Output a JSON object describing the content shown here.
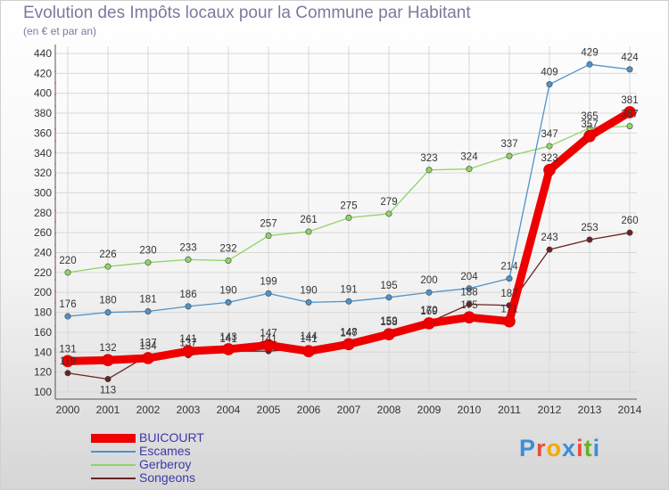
{
  "title": "Evolution des Impôts locaux pour la Commune par Habitant",
  "subtitle": "(en € et par an)",
  "logo": {
    "text": "Proxiti",
    "colors": [
      "#3a8fd6",
      "#e84c3d",
      "#f2a900",
      "#3a8fd6",
      "#e84c3d",
      "#6ab023",
      "#3a8fd6"
    ]
  },
  "chart_data": {
    "type": "line",
    "x": [
      2000,
      2001,
      2002,
      2003,
      2004,
      2005,
      2006,
      2007,
      2008,
      2009,
      2010,
      2011,
      2012,
      2013,
      2014
    ],
    "ylim": [
      100,
      440
    ],
    "yticks": [
      100,
      120,
      140,
      160,
      180,
      200,
      220,
      240,
      260,
      280,
      300,
      320,
      340,
      360,
      380,
      400,
      420,
      440
    ],
    "grid": true,
    "legend": "bottom-left",
    "series": [
      {
        "name": "BUICOURT",
        "color": "#ee0000",
        "values": [
          131,
          132,
          134,
          141,
          143,
          147,
          141,
          148,
          158,
          169,
          175,
          171,
          323,
          357,
          381
        ]
      },
      {
        "name": "Escames",
        "color": "#4f93c9",
        "values": [
          176,
          180,
          181,
          186,
          190,
          199,
          190,
          191,
          195,
          200,
          204,
          214,
          409,
          429,
          424
        ]
      },
      {
        "name": "Gerberoy",
        "color": "#8fd467",
        "values": [
          220,
          226,
          230,
          233,
          232,
          257,
          261,
          275,
          279,
          323,
          324,
          337,
          347,
          365,
          367
        ]
      },
      {
        "name": "Songeons",
        "color": "#6b2222",
        "values": [
          119,
          113,
          137,
          137,
          141,
          141,
          144,
          147,
          159,
          170,
          188,
          187,
          243,
          253,
          260
        ]
      }
    ]
  }
}
